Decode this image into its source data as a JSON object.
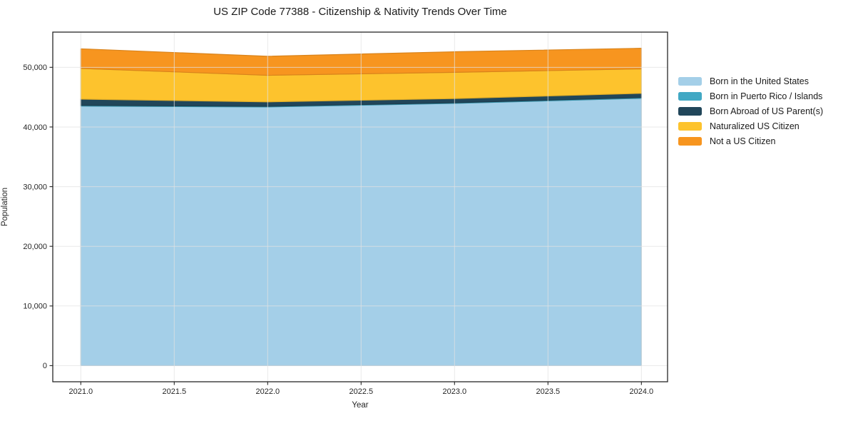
{
  "chart": {
    "title": "US ZIP Code 77388 - Citizenship & Nativity Trends Over Time",
    "xlabel": "Year",
    "ylabel": "Population"
  },
  "chart_data": {
    "type": "area",
    "stacked": true,
    "title": "US ZIP Code 77388 - Citizenship & Nativity Trends Over Time",
    "xlabel": "Year",
    "ylabel": "Population",
    "x": [
      2021,
      2022,
      2023,
      2024
    ],
    "series": [
      {
        "name": "Born in the United States",
        "color": "#a4cfe8",
        "values": [
          43500,
          43350,
          43950,
          44800
        ]
      },
      {
        "name": "Born in Puerto Rico / Islands",
        "color": "#41a8c4",
        "values": [
          120,
          110,
          110,
          140
        ]
      },
      {
        "name": "Born Abroad of US Parent(s)",
        "color": "#21465a",
        "values": [
          1050,
          750,
          700,
          700
        ]
      },
      {
        "name": "Naturalized US Citizen",
        "color": "#fdc32d",
        "values": [
          5150,
          4450,
          4400,
          4100
        ]
      },
      {
        "name": "Not a US Citizen",
        "color": "#f7951f",
        "values": [
          3280,
          3190,
          3450,
          3450
        ]
      }
    ],
    "totals": [
      53100,
      51850,
      52610,
      53190
    ],
    "xticks": [
      2021.0,
      2021.5,
      2022.0,
      2022.5,
      2023.0,
      2023.5,
      2024.0
    ],
    "yticks": [
      0,
      10000,
      20000,
      30000,
      40000,
      50000
    ],
    "xlim": [
      2020.85,
      2024.14
    ],
    "ylim": [
      -2700,
      55900
    ],
    "grid": true,
    "grid_above_areas": true,
    "legend_position": "right-outside"
  },
  "colors": {
    "text": "#1a1a1a",
    "axis": "#262626",
    "grid": "#e2e2e2",
    "background": "#ffffff"
  }
}
